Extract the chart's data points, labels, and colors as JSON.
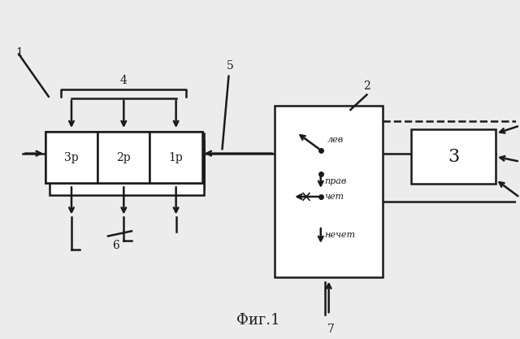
{
  "bg_color": "#ececec",
  "title": "Фиг.1",
  "title_fontsize": 13,
  "reg_labels": [
    "3р",
    "2р",
    "1р"
  ],
  "lev": "лев",
  "prav": "прав",
  "chet": "чет",
  "nechet": "нечет",
  "label_1": "1",
  "label_2": "2",
  "label_3": "3",
  "label_4": "4",
  "label_5": "5",
  "label_6": "6",
  "label_7": "7"
}
